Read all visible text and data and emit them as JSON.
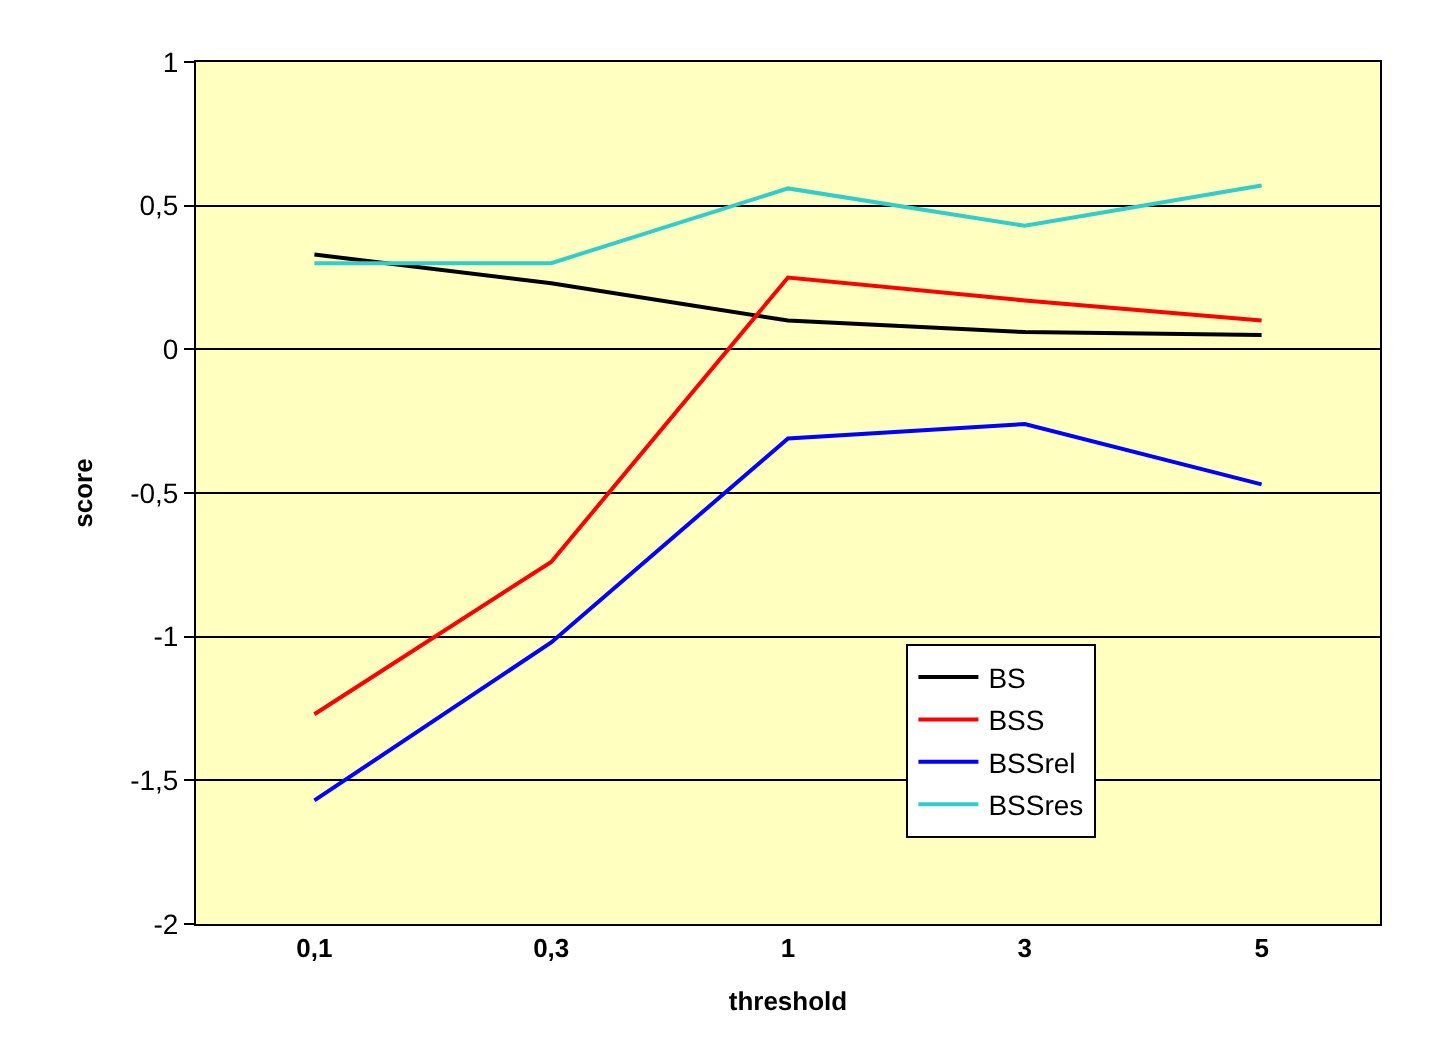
{
  "chart_data": {
    "type": "line",
    "xlabel": "threshold",
    "ylabel": "score",
    "categories": [
      "0,1",
      "0,3",
      "1",
      "3",
      "5"
    ],
    "series": [
      {
        "name": "BS",
        "color": "#000000",
        "values": [
          0.33,
          0.23,
          0.1,
          0.06,
          0.05
        ]
      },
      {
        "name": "BSS",
        "color": "#ff0000",
        "values": [
          -1.27,
          -0.74,
          0.25,
          0.17,
          0.1
        ]
      },
      {
        "name": "BSSrel",
        "color": "#0000ff",
        "values": [
          -1.57,
          -1.02,
          -0.31,
          -0.26,
          -0.47
        ]
      },
      {
        "name": "BSSres",
        "color": "#33cccc",
        "values": [
          0.3,
          0.3,
          0.56,
          0.43,
          0.57
        ]
      }
    ],
    "ylim": [
      -2,
      1
    ],
    "yticks": [
      {
        "value": -2,
        "label": "-2"
      },
      {
        "value": -1.5,
        "label": "-1,5"
      },
      {
        "value": -1,
        "label": "-1"
      },
      {
        "value": -0.5,
        "label": "-0,5"
      },
      {
        "value": 0,
        "label": "0"
      },
      {
        "value": 0.5,
        "label": "0,5"
      },
      {
        "value": 1,
        "label": "1"
      }
    ],
    "grid": "y",
    "legend": "bottom right",
    "marker": "none",
    "line_style": "solid"
  }
}
